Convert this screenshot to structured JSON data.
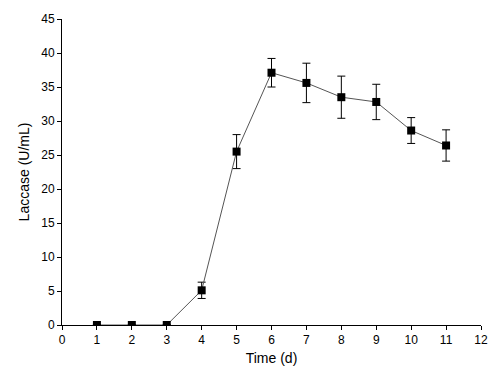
{
  "chart_data": {
    "type": "line",
    "x_label": "Time (d)",
    "y_label": "Laccase (U/mL)",
    "x": [
      1,
      2,
      3,
      4,
      5,
      6,
      7,
      8,
      9,
      10,
      11
    ],
    "values": [
      0,
      0,
      0,
      5.1,
      25.5,
      37.1,
      35.6,
      33.5,
      32.8,
      28.6,
      26.4
    ],
    "errors": [
      0,
      0,
      0,
      1.2,
      2.5,
      2.1,
      2.9,
      3.1,
      2.6,
      1.9,
      2.3
    ],
    "color": "#000000",
    "marker": "square",
    "line_style": "solid",
    "grid": false,
    "xlim": [
      0,
      12
    ],
    "xticks": [
      0,
      1,
      2,
      3,
      4,
      5,
      6,
      7,
      8,
      9,
      10,
      11,
      12
    ],
    "ylim": [
      0,
      45
    ],
    "yticks": [
      0,
      5,
      10,
      15,
      20,
      25,
      30,
      35,
      40,
      45
    ]
  }
}
